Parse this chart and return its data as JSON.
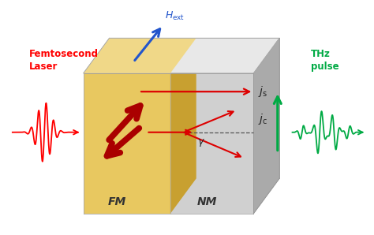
{
  "fig_width": 4.74,
  "fig_height": 2.98,
  "dpi": 100,
  "bg_color": "#ffffff",
  "fm_front_color": "#E8C860",
  "fm_dark_color": "#C8A030",
  "fm_top_color": "#F0D888",
  "nm_front_color": "#D0D0D0",
  "nm_right_color": "#AAAAAA",
  "nm_top_color": "#E8E8E8",
  "nm_boundary_color": "#B8B8B8",
  "red_arrow_color": "#DD0000",
  "dark_red_color": "#AA0000",
  "blue_color": "#2255CC",
  "green_color": "#00AA44",
  "label_dark": "#222222",
  "femtosecond_label": "Femtosecond\nLaser",
  "thz_label": "THz\npulse",
  "fm_label": "FM",
  "nm_label": "NM",
  "gamma_label": "γ"
}
